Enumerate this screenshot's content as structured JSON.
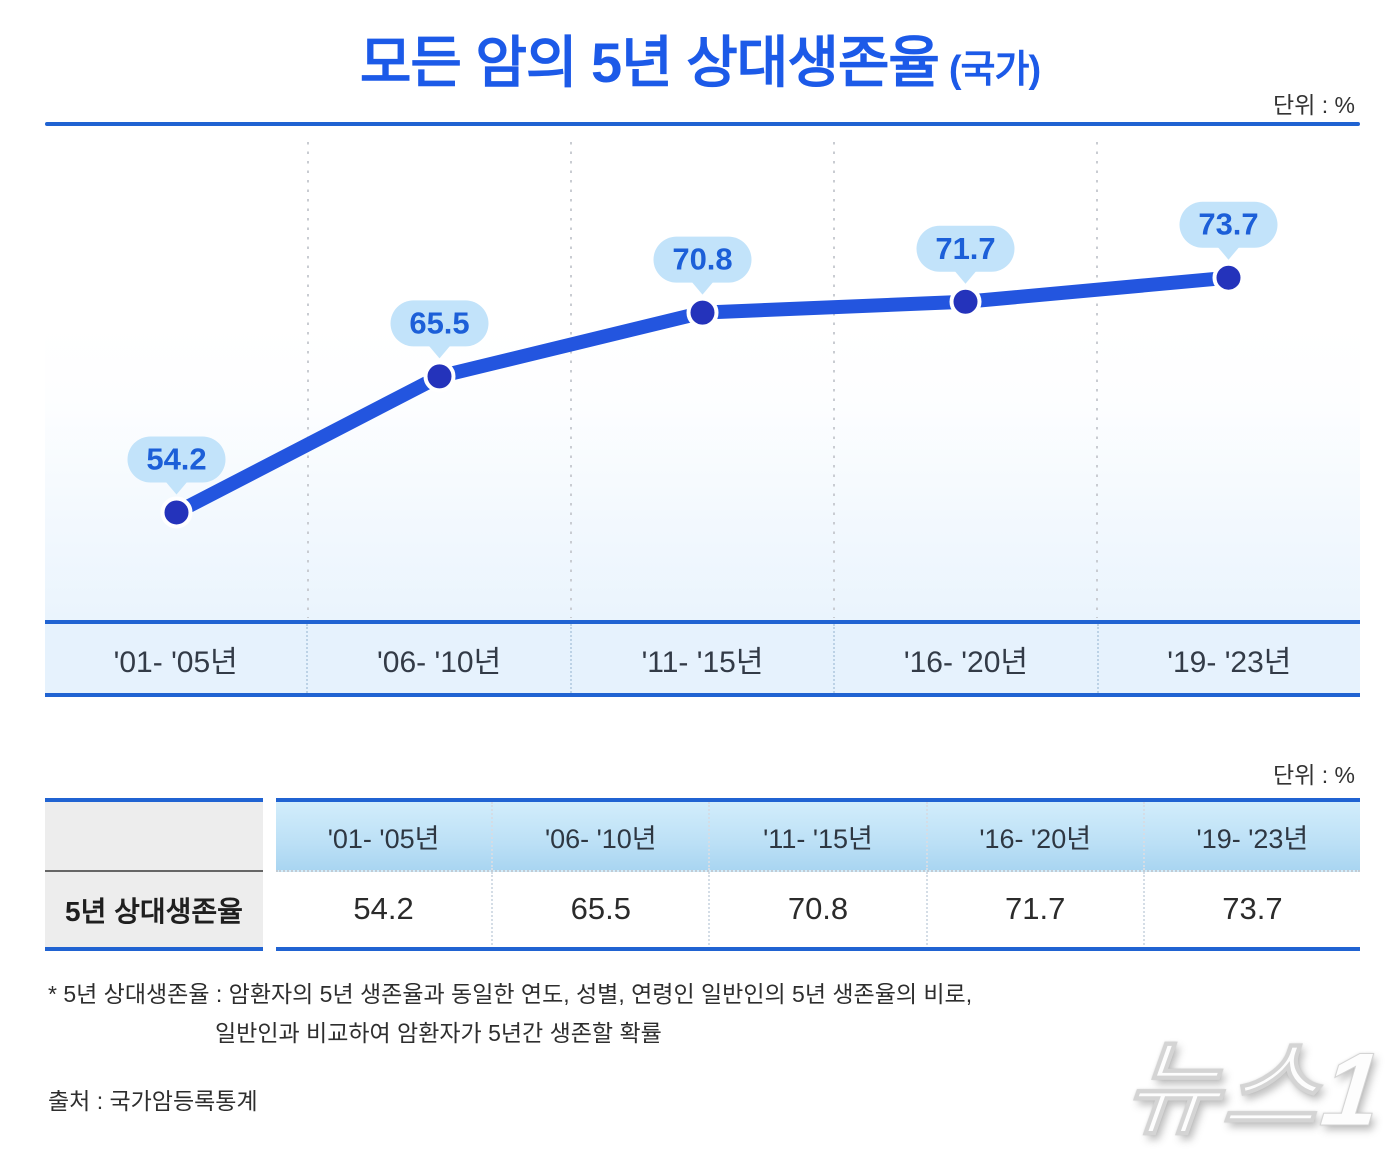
{
  "header": {
    "title": "모든 암의 5년 상대생존율",
    "title_suffix": "(국가)",
    "unit_label": "단위 : %"
  },
  "chart_data": {
    "type": "line",
    "title": "모든 암의 5년 상대생존율 (국가)",
    "categories": [
      "'01- '05년",
      "'06- '10년",
      "'11- '15년",
      "'16- '20년",
      "'19- '23년"
    ],
    "series": [
      {
        "name": "5년 상대생존율",
        "values": [
          54.2,
          65.5,
          70.8,
          71.7,
          73.7
        ]
      }
    ],
    "values": [
      54.2,
      65.5,
      70.8,
      71.7,
      73.7
    ],
    "unit": "%",
    "ylim": [
      50,
      76
    ],
    "grid": "vertical-dotted",
    "legend": "none",
    "colors": {
      "line": "#2355DF",
      "point": "#2433BB",
      "point_halo": "#ffffff",
      "bubble_bg": "#C2E3FA",
      "bubble_text": "#1C5FD8",
      "grid": "#C9CCD2"
    }
  },
  "table": {
    "unit_label": "단위 : %",
    "row_label": "5년 상대생존율"
  },
  "footnotes": {
    "line1": "* 5년 상대생존율 : 암환자의 5년 생존율과 동일한 연도, 성별, 연령인 일반인의  5년 생존율의 비로,",
    "line2": "일반인과 비교하여 암환자가 5년간 생존할 확률",
    "source": "출처 : 국가암등록통계"
  },
  "watermark": "뉴스1"
}
